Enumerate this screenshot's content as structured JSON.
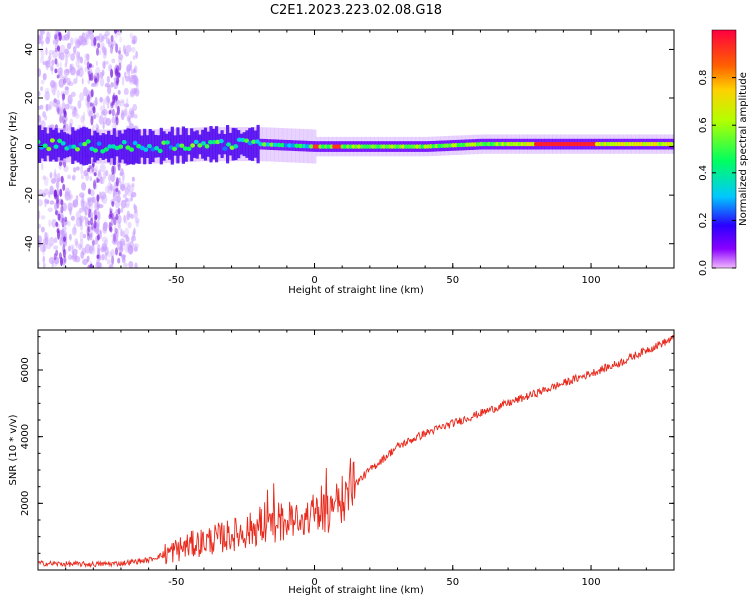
{
  "title": "C2E1.2023.223.02.08.G18",
  "chart_data": [
    {
      "type": "heatmap",
      "xlabel": "Height of straight line (km)",
      "ylabel": "Frequency (Hz)",
      "xlim": [
        -100,
        130
      ],
      "ylim": [
        -50,
        48
      ],
      "xticks": [
        -50,
        0,
        50,
        100
      ],
      "yticks": [
        -40,
        -20,
        0,
        20,
        40
      ],
      "colorbar": {
        "label": "Normalized spectral amplitude",
        "range": [
          0,
          1
        ],
        "ticks": [
          "0.0",
          "0.2",
          "0.4",
          "0.6",
          "0.8"
        ],
        "colormap": "gist_rainbow"
      },
      "dominant_frequency_trace": {
        "x": [
          -100,
          -80,
          -60,
          -40,
          -20,
          0,
          20,
          40,
          60,
          80,
          100,
          120,
          130
        ],
        "y": [
          1,
          0,
          0,
          1,
          1,
          0,
          0,
          0,
          1,
          1,
          1,
          1,
          1
        ]
      }
    },
    {
      "type": "line",
      "xlabel": "Height of straight line (km)",
      "ylabel": "SNR (10 * v/v)",
      "xlim": [
        -100,
        130
      ],
      "ylim": [
        0,
        7200
      ],
      "xticks": [
        -50,
        0,
        50,
        100
      ],
      "yticks": [
        2000,
        4000,
        6000
      ],
      "color": "#e8291c",
      "series": [
        {
          "x": [
            -100,
            -90,
            -80,
            -70,
            -60,
            -55,
            -50,
            -45,
            -40,
            -35,
            -30,
            -25,
            -20,
            -15,
            -10,
            -5,
            0,
            5,
            10,
            15,
            20,
            30,
            40,
            50,
            60,
            70,
            80,
            90,
            100,
            110,
            120,
            130
          ],
          "y": [
            200,
            180,
            170,
            200,
            300,
            450,
            600,
            750,
            850,
            950,
            1050,
            1150,
            1300,
            1400,
            1450,
            1550,
            1650,
            1750,
            2100,
            2600,
            3000,
            3700,
            4100,
            4400,
            4700,
            5000,
            5300,
            5600,
            5900,
            6200,
            6600,
            6950
          ]
        }
      ]
    }
  ]
}
